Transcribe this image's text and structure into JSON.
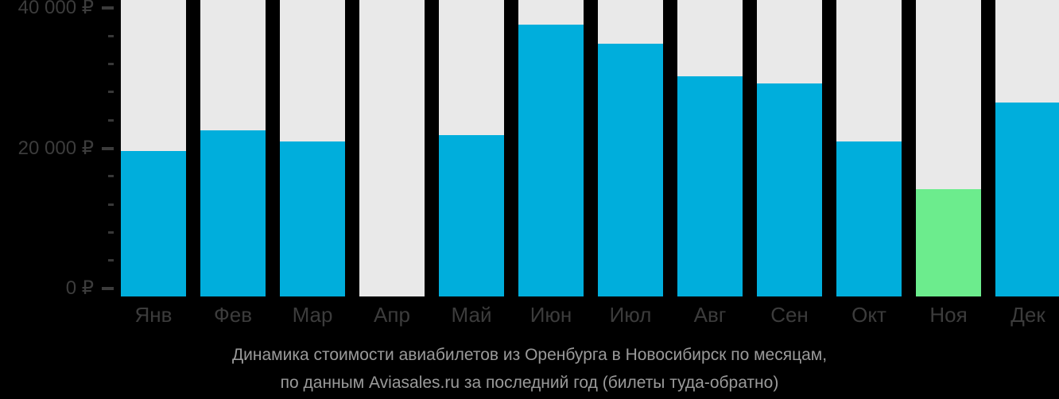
{
  "chart_data": {
    "type": "bar",
    "title": "Динамика стоимости авиабилетов из Оренбурга в Новосибирск по месяцам,",
    "subtitle": "по данным Aviasales.ru за последний год (билеты туда-обратно)",
    "categories": [
      "Янв",
      "Фев",
      "Мар",
      "Апр",
      "Май",
      "Июн",
      "Июл",
      "Авг",
      "Сен",
      "Окт",
      "Ноя",
      "Дек"
    ],
    "values": [
      19600,
      22500,
      21000,
      null,
      21900,
      37600,
      34900,
      30300,
      29200,
      21000,
      14200,
      26500
    ],
    "unit": "₽",
    "highlight_category": "Ноя",
    "y_axis": {
      "major_ticks": [
        {
          "value": 40000,
          "label": "40 000 ₽"
        },
        {
          "value": 20000,
          "label": "20 000 ₽"
        },
        {
          "value": 0,
          "label": "0 ₽"
        }
      ],
      "minor_tick_values": [
        36000,
        32000,
        28000,
        24000,
        16000,
        12000,
        8000,
        4000
      ],
      "ylim": [
        0,
        41100
      ],
      "grid": false
    },
    "legend": null,
    "colors": {
      "bar": "#00AEDC",
      "highlight_bar": "#6CEC8D",
      "column_background": "#E9E9E9",
      "axis_text": "#3C3C3C",
      "caption_text": "#9A9A9A",
      "page_background": "#000000"
    }
  }
}
